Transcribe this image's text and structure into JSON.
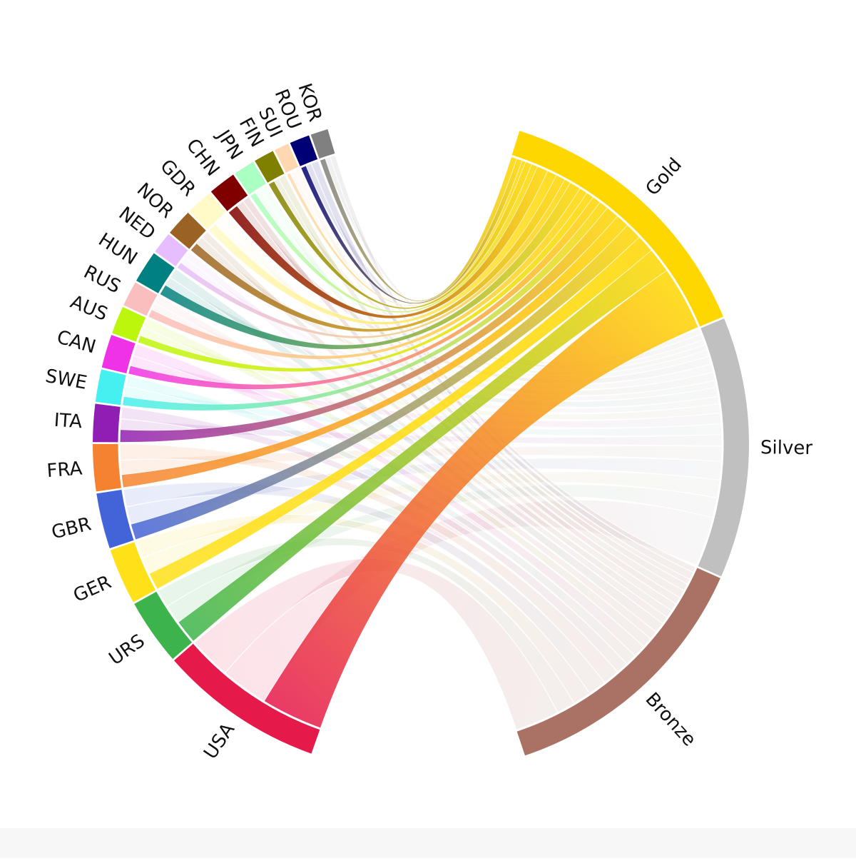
{
  "chart_data": {
    "type": "chord",
    "title": "",
    "groups_left": [
      {
        "name": "USA",
        "color": "#e6194b"
      },
      {
        "name": "URS",
        "color": "#3cb44b"
      },
      {
        "name": "GER",
        "color": "#ffe119"
      },
      {
        "name": "GBR",
        "color": "#4363d8"
      },
      {
        "name": "FRA",
        "color": "#f58231"
      },
      {
        "name": "ITA",
        "color": "#911eb4"
      },
      {
        "name": "SWE",
        "color": "#46f0f0"
      },
      {
        "name": "CAN",
        "color": "#f032e6"
      },
      {
        "name": "AUS",
        "color": "#bcf60c"
      },
      {
        "name": "RUS",
        "color": "#fabebe"
      },
      {
        "name": "HUN",
        "color": "#008080"
      },
      {
        "name": "NED",
        "color": "#e6beff"
      },
      {
        "name": "NOR",
        "color": "#9a6324"
      },
      {
        "name": "GDR",
        "color": "#fffac8"
      },
      {
        "name": "CHN",
        "color": "#800000"
      },
      {
        "name": "JPN",
        "color": "#aaffc3"
      },
      {
        "name": "FIN",
        "color": "#808000"
      },
      {
        "name": "SUI",
        "color": "#ffd8b1"
      },
      {
        "name": "ROU",
        "color": "#000075"
      },
      {
        "name": "KOR",
        "color": "#808080"
      }
    ],
    "groups_right": [
      {
        "name": "Gold",
        "color": "#FFD700"
      },
      {
        "name": "Silver",
        "color": "#C0C0C0"
      },
      {
        "name": "Bronze",
        "color": "#A97264"
      }
    ],
    "medals": [
      {
        "country": "USA",
        "gold": 1022,
        "silver": 794,
        "bronze": 704
      },
      {
        "country": "URS",
        "gold": 395,
        "silver": 319,
        "bronze": 296
      },
      {
        "country": "GER",
        "gold": 283,
        "silver": 282,
        "bronze": 290
      },
      {
        "country": "GBR",
        "gold": 263,
        "silver": 295,
        "bronze": 289
      },
      {
        "country": "FRA",
        "gold": 212,
        "silver": 241,
        "bronze": 263
      },
      {
        "country": "ITA",
        "gold": 206,
        "silver": 178,
        "bronze": 193
      },
      {
        "country": "SWE",
        "gold": 145,
        "silver": 170,
        "bronze": 179
      },
      {
        "country": "CAN",
        "gold": 136,
        "silver": 172,
        "bronze": 201
      },
      {
        "country": "AUS",
        "gold": 118,
        "silver": 143,
        "bronze": 163
      },
      {
        "country": "RUS",
        "gold": 129,
        "silver": 118,
        "bronze": 137
      },
      {
        "country": "HUN",
        "gold": 175,
        "silver": 147,
        "bronze": 169
      },
      {
        "country": "NED",
        "gold": 101,
        "silver": 109,
        "bronze": 120
      },
      {
        "country": "NOR",
        "gold": 148,
        "silver": 134,
        "bronze": 124
      },
      {
        "country": "GDR",
        "gold": 153,
        "silver": 129,
        "bronze": 127
      },
      {
        "country": "CHN",
        "gold": 176,
        "silver": 127,
        "bronze": 116
      },
      {
        "country": "JPN",
        "gold": 97,
        "silver": 103,
        "bronze": 125
      },
      {
        "country": "FIN",
        "gold": 104,
        "silver": 87,
        "bronze": 119
      },
      {
        "country": "SUI",
        "gold": 56,
        "silver": 85,
        "bronze": 84
      },
      {
        "country": "ROU",
        "gold": 89,
        "silver": 95,
        "bronze": 121
      },
      {
        "country": "KOR",
        "gold": 90,
        "silver": 87,
        "bronze": 90
      }
    ]
  }
}
